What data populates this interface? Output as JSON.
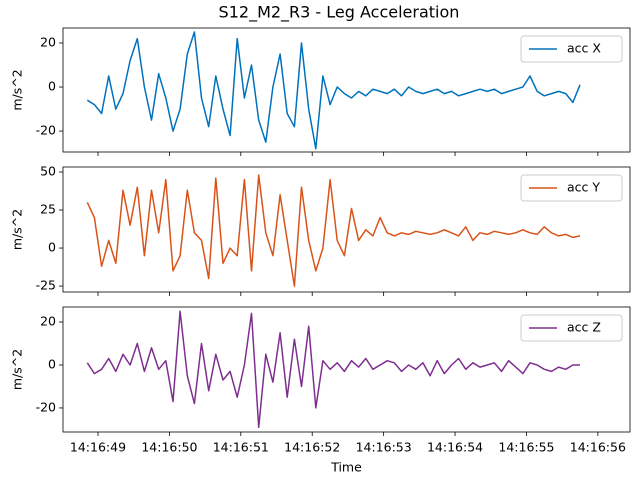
{
  "title": "S12_M2_R3 - Leg Acceleration",
  "chart_data": [
    {
      "type": "line",
      "ylabel": "m/s^2",
      "legend": "upper right",
      "xlim": [
        48.51,
        56.45
      ],
      "ylim": [
        -29.5,
        26.8
      ],
      "yticks": [
        -20,
        0,
        20
      ],
      "x": [
        48.85,
        48.95,
        49.05,
        49.15,
        49.25,
        49.35,
        49.45,
        49.55,
        49.65,
        49.75,
        49.85,
        49.95,
        50.05,
        50.15,
        50.25,
        50.35,
        50.45,
        50.55,
        50.65,
        50.75,
        50.85,
        50.95,
        51.05,
        51.15,
        51.25,
        51.35,
        51.45,
        51.55,
        51.65,
        51.75,
        51.85,
        51.95,
        52.05,
        52.15,
        52.25,
        52.35,
        52.45,
        52.55,
        52.65,
        52.75,
        52.85,
        52.95,
        53.05,
        53.15,
        53.25,
        53.35,
        53.45,
        53.55,
        53.65,
        53.75,
        53.85,
        53.95,
        54.05,
        54.15,
        54.25,
        54.35,
        54.45,
        54.55,
        54.65,
        54.75,
        54.85,
        54.95,
        55.05,
        55.15,
        55.25,
        55.35,
        55.45,
        55.55,
        55.65,
        55.75
      ],
      "series": [
        {
          "name": "acc X",
          "color": "#0072bd",
          "values": [
            -6,
            -8,
            -12,
            5,
            -10,
            -3,
            12,
            22,
            0,
            -15,
            6,
            -5,
            -20,
            -10,
            15,
            25,
            -5,
            -18,
            5,
            -10,
            -22,
            22,
            -5,
            10,
            -15,
            -25,
            0,
            15,
            -12,
            -18,
            20,
            -10,
            -28,
            5,
            -8,
            0,
            -3,
            -5,
            -2,
            -4,
            -1,
            -2,
            -3,
            -1,
            -4,
            0,
            -2,
            -3,
            -2,
            -1,
            -3,
            -2,
            -4,
            -3,
            -2,
            -1,
            -2,
            -1,
            -3,
            -2,
            -1,
            0,
            5,
            -2,
            -4,
            -3,
            -2,
            -3,
            -7,
            1
          ]
        }
      ]
    },
    {
      "type": "line",
      "ylabel": "m/s^2",
      "legend": "upper right",
      "xlim": [
        48.51,
        56.45
      ],
      "ylim": [
        -28.9,
        53.3
      ],
      "yticks": [
        -25,
        0,
        25,
        50
      ],
      "x": [
        48.85,
        48.95,
        49.05,
        49.15,
        49.25,
        49.35,
        49.45,
        49.55,
        49.65,
        49.75,
        49.85,
        49.95,
        50.05,
        50.15,
        50.25,
        50.35,
        50.45,
        50.55,
        50.65,
        50.75,
        50.85,
        50.95,
        51.05,
        51.15,
        51.25,
        51.35,
        51.45,
        51.55,
        51.65,
        51.75,
        51.85,
        51.95,
        52.05,
        52.15,
        52.25,
        52.35,
        52.45,
        52.55,
        52.65,
        52.75,
        52.85,
        52.95,
        53.05,
        53.15,
        53.25,
        53.35,
        53.45,
        53.55,
        53.65,
        53.75,
        53.85,
        53.95,
        54.05,
        54.15,
        54.25,
        54.35,
        54.45,
        54.55,
        54.65,
        54.75,
        54.85,
        54.95,
        55.05,
        55.15,
        55.25,
        55.35,
        55.45,
        55.55,
        55.65,
        55.75
      ],
      "series": [
        {
          "name": "acc Y",
          "color": "#d95319",
          "values": [
            30,
            20,
            -12,
            5,
            -10,
            38,
            15,
            40,
            -5,
            38,
            10,
            45,
            -15,
            -5,
            38,
            10,
            5,
            -20,
            46,
            -10,
            0,
            -5,
            45,
            -15,
            48,
            10,
            -5,
            35,
            5,
            -25,
            40,
            5,
            -15,
            0,
            45,
            5,
            -5,
            26,
            5,
            12,
            8,
            20,
            10,
            8,
            10,
            9,
            11,
            10,
            9,
            10,
            12,
            10,
            8,
            14,
            5,
            10,
            9,
            11,
            10,
            9,
            10,
            12,
            10,
            9,
            14,
            10,
            8,
            9,
            7,
            8
          ]
        }
      ]
    },
    {
      "type": "line",
      "ylabel": "m/s^2",
      "xlabel": "Time",
      "legend": "upper right",
      "xlim": [
        48.51,
        56.45
      ],
      "ylim": [
        -31.2,
        27
      ],
      "yticks": [
        -20,
        0,
        20
      ],
      "xticks": [
        {
          "value": 49,
          "label": "14:16:49"
        },
        {
          "value": 50,
          "label": "14:16:50"
        },
        {
          "value": 51,
          "label": "14:16:51"
        },
        {
          "value": 52,
          "label": "14:16:52"
        },
        {
          "value": 53,
          "label": "14:16:53"
        },
        {
          "value": 54,
          "label": "14:16:54"
        },
        {
          "value": 55,
          "label": "14:16:55"
        },
        {
          "value": 56,
          "label": "14:16:56"
        }
      ],
      "x": [
        48.85,
        48.95,
        49.05,
        49.15,
        49.25,
        49.35,
        49.45,
        49.55,
        49.65,
        49.75,
        49.85,
        49.95,
        50.05,
        50.15,
        50.25,
        50.35,
        50.45,
        50.55,
        50.65,
        50.75,
        50.85,
        50.95,
        51.05,
        51.15,
        51.25,
        51.35,
        51.45,
        51.55,
        51.65,
        51.75,
        51.85,
        51.95,
        52.05,
        52.15,
        52.25,
        52.35,
        52.45,
        52.55,
        52.65,
        52.75,
        52.85,
        52.95,
        53.05,
        53.15,
        53.25,
        53.35,
        53.45,
        53.55,
        53.65,
        53.75,
        53.85,
        53.95,
        54.05,
        54.15,
        54.25,
        54.35,
        54.45,
        54.55,
        54.65,
        54.75,
        54.85,
        54.95,
        55.05,
        55.15,
        55.25,
        55.35,
        55.45,
        55.55,
        55.65,
        55.75
      ],
      "series": [
        {
          "name": "acc Z",
          "color": "#7e2f8e",
          "values": [
            1,
            -4,
            -2,
            3,
            -3,
            5,
            0,
            10,
            -3,
            8,
            -2,
            2,
            -17,
            25,
            -5,
            -18,
            10,
            -12,
            5,
            -7,
            -3,
            -15,
            0,
            24,
            -29,
            5,
            -8,
            15,
            -15,
            12,
            -10,
            18,
            -20,
            2,
            -2,
            1,
            -3,
            2,
            -1,
            3,
            -2,
            0,
            2,
            1,
            -3,
            0,
            -2,
            1,
            -5,
            2,
            -4,
            0,
            3,
            -2,
            1,
            -1,
            0,
            1,
            -3,
            2,
            -1,
            -4,
            1,
            0,
            -2,
            -3,
            -1,
            -2,
            0,
            0
          ]
        }
      ]
    }
  ]
}
